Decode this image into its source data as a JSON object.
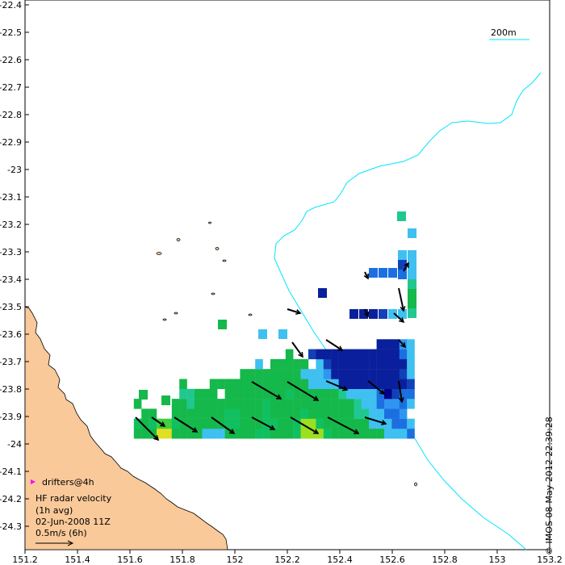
{
  "map": {
    "lon_ticks": [
      "151.2",
      "151.4",
      "151.6",
      "151.8",
      "152",
      "152.2",
      "152.4",
      "152.6",
      "152.8",
      "153",
      "153.2"
    ],
    "lat_ticks": [
      "-22.4",
      "-22.5",
      "-22.6",
      "-22.7",
      "-22.8",
      "-22.9",
      "-23",
      "-23.1",
      "-23.2",
      "-23.3",
      "-23.4",
      "-23.5",
      "-23.6",
      "-23.7",
      "-23.8",
      "-23.9",
      "-24",
      "-24.1",
      "-24.2",
      "-24.3"
    ],
    "lon_range": [
      151.2,
      153.2
    ],
    "lat_range": [
      -24.4,
      -22.4
    ],
    "colors": {
      "land": "#f9c99a",
      "isobath": "#00e5ff",
      "drifter_marker": "#ff00ff",
      "arrow": "#000000",
      "background": "#ffffff"
    }
  },
  "scale_bar": {
    "label": "200m"
  },
  "legend": {
    "drifters": "drifters@4h",
    "line1": "HF radar velocity",
    "line2": "(1h avg)",
    "line3": "02-Jun-2008 11Z",
    "line4": "0.5m/s (6h)"
  },
  "credit": "© IMOS 08-May-2012 22:39:28"
}
